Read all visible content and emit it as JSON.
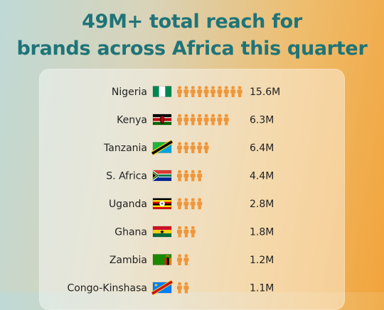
{
  "header": {
    "line1": "49M+ total reach for",
    "line2": "brands across Africa this quarter"
  },
  "colors": {
    "headline": "#1f7478",
    "person_icon": "#f0963a",
    "text": "#222222"
  },
  "chart_data": {
    "type": "pictogram",
    "title": "49M+ total reach for brands across Africa this quarter",
    "icon": "person-icon",
    "rows": [
      {
        "country": "Nigeria",
        "flag": "nigeria-flag",
        "icons": 10,
        "value": 15.6,
        "label": "15.6M"
      },
      {
        "country": "Kenya",
        "flag": "kenya-flag",
        "icons": 8,
        "value": 6.3,
        "label": "6.3M"
      },
      {
        "country": "Tanzania",
        "flag": "tanzania-flag",
        "icons": 5,
        "value": 6.4,
        "label": "6.4M"
      },
      {
        "country": "S. Africa",
        "flag": "south-africa-flag",
        "icons": 4,
        "value": 4.4,
        "label": "4.4M"
      },
      {
        "country": "Uganda",
        "flag": "uganda-flag",
        "icons": 4,
        "value": 2.8,
        "label": "2.8M"
      },
      {
        "country": "Ghana",
        "flag": "ghana-flag",
        "icons": 3,
        "value": 1.8,
        "label": "1.8M"
      },
      {
        "country": "Zambia",
        "flag": "zambia-flag",
        "icons": 2,
        "value": 1.2,
        "label": "1.2M"
      },
      {
        "country": "Congo-Kinshasa",
        "flag": "drc-flag",
        "icons": 2,
        "value": 1.1,
        "label": "1.1M"
      }
    ]
  }
}
